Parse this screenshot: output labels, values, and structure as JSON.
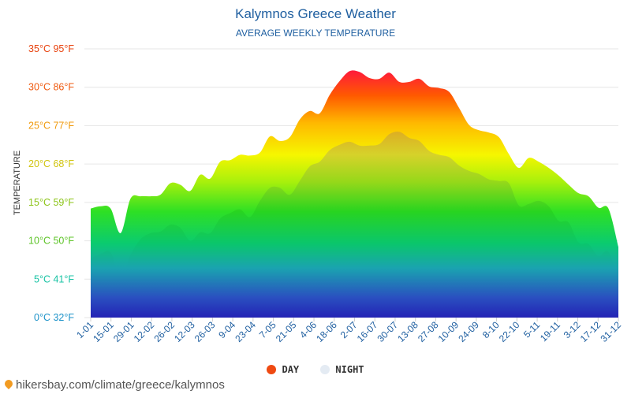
{
  "title": "Kalymnos Greece Weather",
  "subtitle": "AVERAGE WEEKLY TEMPERATURE",
  "source": "hikersbay.com/climate/greece/kalymnos",
  "legend": {
    "day": "DAY",
    "night": "NIGHT"
  },
  "colors": {
    "title": "#1f5fa0",
    "day_dot": "#ef4a12",
    "night_dot": "#e4ebf3"
  },
  "chart_data": {
    "type": "area",
    "ylabel": "TEMPERATURE",
    "ylim": [
      0,
      35
    ],
    "y_ticks": [
      {
        "value": 0,
        "label": "0°C 32°F",
        "color": "#1e93c9"
      },
      {
        "value": 5,
        "label": "5°C 41°F",
        "color": "#18c3a4"
      },
      {
        "value": 10,
        "label": "10°C 50°F",
        "color": "#5ec428"
      },
      {
        "value": 15,
        "label": "15°C 59°F",
        "color": "#8cc418"
      },
      {
        "value": 20,
        "label": "20°C 68°F",
        "color": "#d0c40e"
      },
      {
        "value": 25,
        "label": "25°C 77°F",
        "color": "#f09a0c"
      },
      {
        "value": 30,
        "label": "30°C 86°F",
        "color": "#ef5a10"
      },
      {
        "value": 35,
        "label": "35°C 95°F",
        "color": "#e8420e"
      }
    ],
    "x_ticks": [
      "1-01",
      "15-01",
      "29-01",
      "12-02",
      "26-02",
      "12-03",
      "26-03",
      "9-04",
      "23-04",
      "7-05",
      "21-05",
      "4-06",
      "18-06",
      "2-07",
      "16-07",
      "30-07",
      "13-08",
      "27-08",
      "10-09",
      "24-09",
      "8-10",
      "22-10",
      "5-11",
      "19-11",
      "3-12",
      "17-12",
      "31-12"
    ],
    "series": [
      {
        "name": "DAY",
        "values": [
          14.2,
          14.5,
          14.2,
          11.0,
          15.5,
          15.8,
          15.8,
          16.0,
          17.5,
          17.3,
          16.5,
          18.6,
          18.1,
          20.3,
          20.5,
          21.2,
          21.1,
          21.5,
          23.6,
          23.0,
          23.5,
          25.8,
          26.9,
          26.6,
          29.0,
          30.8,
          32.1,
          32.0,
          31.2,
          31.1,
          31.9,
          30.7,
          30.7,
          31.1,
          30.1,
          29.9,
          29.4,
          27.3,
          25.1,
          24.4,
          24.1,
          23.5,
          21.3,
          19.5,
          20.8,
          20.3,
          19.5,
          18.5,
          17.3,
          16.2,
          15.8,
          14.3,
          14.2,
          9.2
        ]
      },
      {
        "name": "NIGHT",
        "values": [
          7.7,
          8.3,
          8.5,
          5.2,
          8.2,
          10.2,
          11.0,
          11.2,
          12.1,
          11.7,
          10.0,
          11.1,
          11.0,
          12.9,
          13.6,
          14.1,
          13.1,
          15.2,
          16.9,
          16.9,
          16.0,
          17.8,
          19.7,
          20.3,
          21.8,
          22.5,
          22.9,
          22.4,
          22.4,
          22.6,
          23.9,
          24.2,
          23.4,
          23.0,
          21.7,
          21.2,
          20.9,
          19.8,
          19.1,
          18.7,
          18.0,
          17.8,
          17.5,
          14.6,
          14.8,
          15.2,
          14.5,
          12.6,
          12.4,
          9.8,
          9.6,
          8.0,
          8.6,
          4.8
        ]
      }
    ]
  }
}
